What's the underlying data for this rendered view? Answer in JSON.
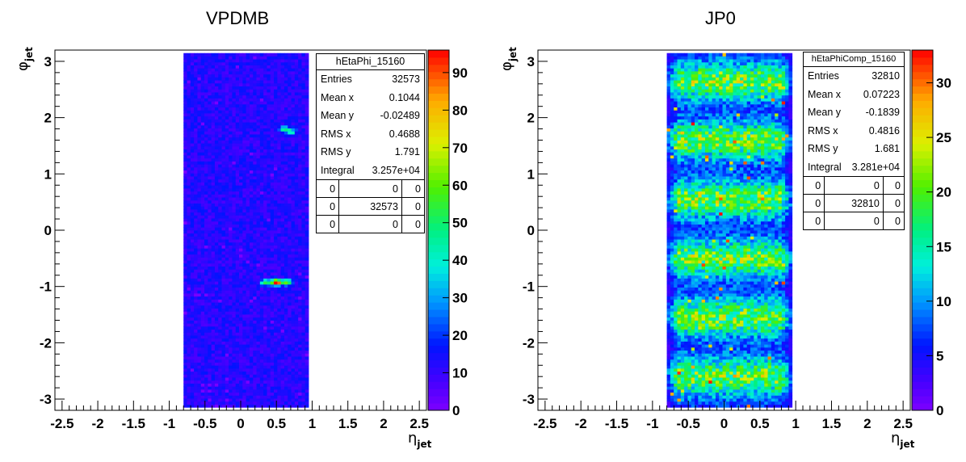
{
  "chart_data": [
    {
      "type": "heatmap",
      "title": "VPDMB",
      "xlabel": "η_jet",
      "ylabel": "φ_jet",
      "xlim": [
        -2.6,
        2.6
      ],
      "ylim": [
        -3.2,
        3.2
      ],
      "x_ticks": [
        "-2.5",
        "-2",
        "-1.5",
        "-1",
        "-0.5",
        "0",
        "0.5",
        "1",
        "1.5",
        "2",
        "2.5"
      ],
      "x_tick_values": [
        -2.5,
        -2,
        -1.5,
        -1,
        -0.5,
        0,
        0.5,
        1,
        1.5,
        2,
        2.5
      ],
      "y_ticks": [
        "-3",
        "-2",
        "-1",
        "0",
        "1",
        "2",
        "3"
      ],
      "y_tick_values": [
        -3,
        -2,
        -1,
        0,
        1,
        2,
        3
      ],
      "z_ticks": [
        "0",
        "10",
        "20",
        "30",
        "40",
        "50",
        "60",
        "70",
        "80",
        "90"
      ],
      "z_tick_values": [
        0,
        10,
        20,
        30,
        40,
        50,
        60,
        70,
        80,
        90
      ],
      "zmax": 96,
      "eta_range": [
        -0.8,
        0.95
      ],
      "background_level": 12,
      "hotspots": [
        {
          "eta": 0.5,
          "phi": -0.92,
          "value": 96
        },
        {
          "eta": 0.35,
          "phi": -0.92,
          "value": 45
        },
        {
          "eta": 0.65,
          "phi": -0.92,
          "value": 50
        },
        {
          "eta": 0.6,
          "phi": 1.8,
          "value": 38
        },
        {
          "eta": 0.7,
          "phi": 1.75,
          "value": 32
        }
      ],
      "stats": {
        "name": "hEtaPhi_15160",
        "rows": [
          {
            "label": "Entries",
            "value": "32573"
          },
          {
            "label": "Mean x",
            "value": "0.1044"
          },
          {
            "label": "Mean y",
            "value": "-0.02489"
          },
          {
            "label": "RMS x",
            "value": "0.4688"
          },
          {
            "label": "RMS y",
            "value": "1.791"
          },
          {
            "label": "Integral",
            "value": "3.257e+04"
          }
        ],
        "grid": [
          [
            "0",
            "0",
            "0"
          ],
          [
            "0",
            "32573",
            "0"
          ],
          [
            "0",
            "0",
            "0"
          ]
        ]
      }
    },
    {
      "type": "heatmap",
      "title": "JP0",
      "xlabel": "η_jet",
      "ylabel": "φ_jet",
      "xlim": [
        -2.6,
        2.6
      ],
      "ylim": [
        -3.2,
        3.2
      ],
      "x_ticks": [
        "-2.5",
        "-2",
        "-1.5",
        "-1",
        "-0.5",
        "0",
        "0.5",
        "1",
        "1.5",
        "2",
        "2.5"
      ],
      "x_tick_values": [
        -2.5,
        -2,
        -1.5,
        -1,
        -0.5,
        0,
        0.5,
        1,
        1.5,
        2,
        2.5
      ],
      "y_ticks": [
        "-3",
        "-2",
        "-1",
        "0",
        "1",
        "2",
        "3"
      ],
      "y_tick_values": [
        -3,
        -2,
        -1,
        0,
        1,
        2,
        3
      ],
      "z_ticks": [
        "0",
        "5",
        "10",
        "15",
        "20",
        "25",
        "30"
      ],
      "z_tick_values": [
        0,
        5,
        10,
        15,
        20,
        25,
        30
      ],
      "zmax": 33,
      "eta_range": [
        -0.8,
        0.95
      ],
      "band_centers_phi": [
        -2.6,
        -1.55,
        -0.5,
        0.55,
        1.6,
        2.65
      ],
      "band_peak_level": 20,
      "gap_level": 6,
      "stats": {
        "name": "hEtaPhiComp_15160",
        "rows": [
          {
            "label": "Entries",
            "value": "32810"
          },
          {
            "label": "Mean x",
            "value": "0.07223"
          },
          {
            "label": "Mean y",
            "value": "-0.1839"
          },
          {
            "label": "RMS x",
            "value": "0.4816"
          },
          {
            "label": "RMS y",
            "value": "1.681"
          },
          {
            "label": "Integral",
            "value": "3.281e+04"
          }
        ],
        "grid": [
          [
            "0",
            "0",
            "0"
          ],
          [
            "0",
            "32810",
            "0"
          ],
          [
            "0",
            "0",
            "0"
          ]
        ]
      }
    }
  ]
}
